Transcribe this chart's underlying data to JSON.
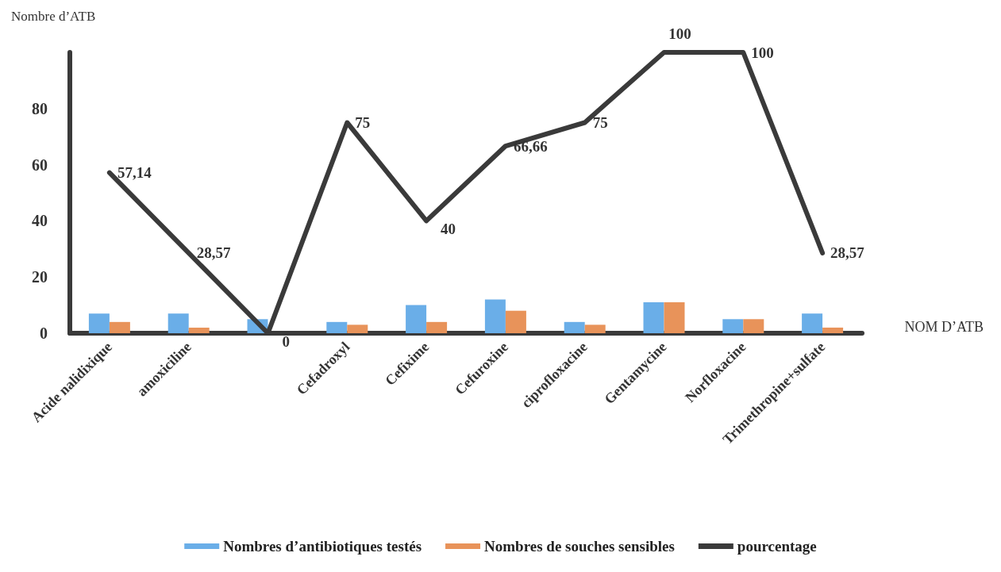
{
  "chart_data": {
    "type": "bar",
    "xlabel": "NOM D’ATB",
    "ylabel": "Nombre d’ATB",
    "categories": [
      "Acide nalidixique",
      "amoxiciline",
      null,
      "Cefadroxyl",
      "Cefixime",
      "Cefuroxine",
      "ciprofloxacine",
      "Gentamycine",
      "Norfloxacine",
      "Trimethropine+sulfate"
    ],
    "series": [
      {
        "name": "Nombres d’antibiotiques testés",
        "color": "#6aaee8",
        "values": [
          7,
          7,
          5,
          4,
          10,
          12,
          4,
          11,
          5,
          7
        ]
      },
      {
        "name": "Nombres de souches sensibles",
        "color": "#e8935a",
        "values": [
          4,
          2,
          0,
          3,
          4,
          8,
          3,
          11,
          5,
          2
        ]
      },
      {
        "name": "pourcentage",
        "type": "line",
        "color": "#3a3a3a",
        "values": [
          57.14,
          28.57,
          0,
          75,
          40,
          66.66,
          75,
          100,
          100,
          28.57
        ],
        "value_labels": [
          "57,14",
          "28,57",
          "0",
          "75",
          "40",
          "66,66",
          "75",
          "100",
          "100",
          "28,57"
        ]
      }
    ],
    "ylim": [
      0,
      100
    ],
    "yticks": [
      0,
      20,
      40,
      60,
      80
    ],
    "grid": false,
    "legend": "bottom",
    "marker": "none",
    "line_style": "solid"
  }
}
